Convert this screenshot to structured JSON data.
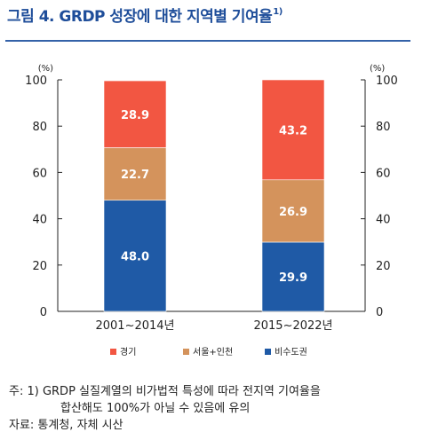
{
  "figure": {
    "title": "그림 4. GRDP 성장에 대한 지역별 기여율",
    "title_sup": "1)"
  },
  "notes": {
    "line1": "주: 1) GRDP 실질계열의 비가법적 특성에 따라 전지역 기여율을",
    "line2": "합산해도 100%가 아닐 수 있음에 유의",
    "source": "자료: 통계청, 자체 시산"
  },
  "chart_data": {
    "type": "bar",
    "stacked": true,
    "categories": [
      "2001~2014년",
      "2015~2022년"
    ],
    "series": [
      {
        "name": "비수도권",
        "values": [
          48.0,
          29.9
        ],
        "color": "#1f5aa6"
      },
      {
        "name": "서울+인천",
        "values": [
          22.7,
          26.9
        ],
        "color": "#d4935c"
      },
      {
        "name": "경기",
        "values": [
          28.9,
          43.2
        ],
        "color": "#f25642"
      }
    ],
    "legend_order": [
      "경기",
      "서울+인천",
      "비수도권"
    ],
    "ylim": [
      0,
      100
    ],
    "yticks": [
      0,
      20,
      40,
      60,
      80,
      100
    ],
    "y_unit_left": "(%)",
    "y_unit_right": "(%)",
    "legend_position": "bottom",
    "grid": false
  }
}
